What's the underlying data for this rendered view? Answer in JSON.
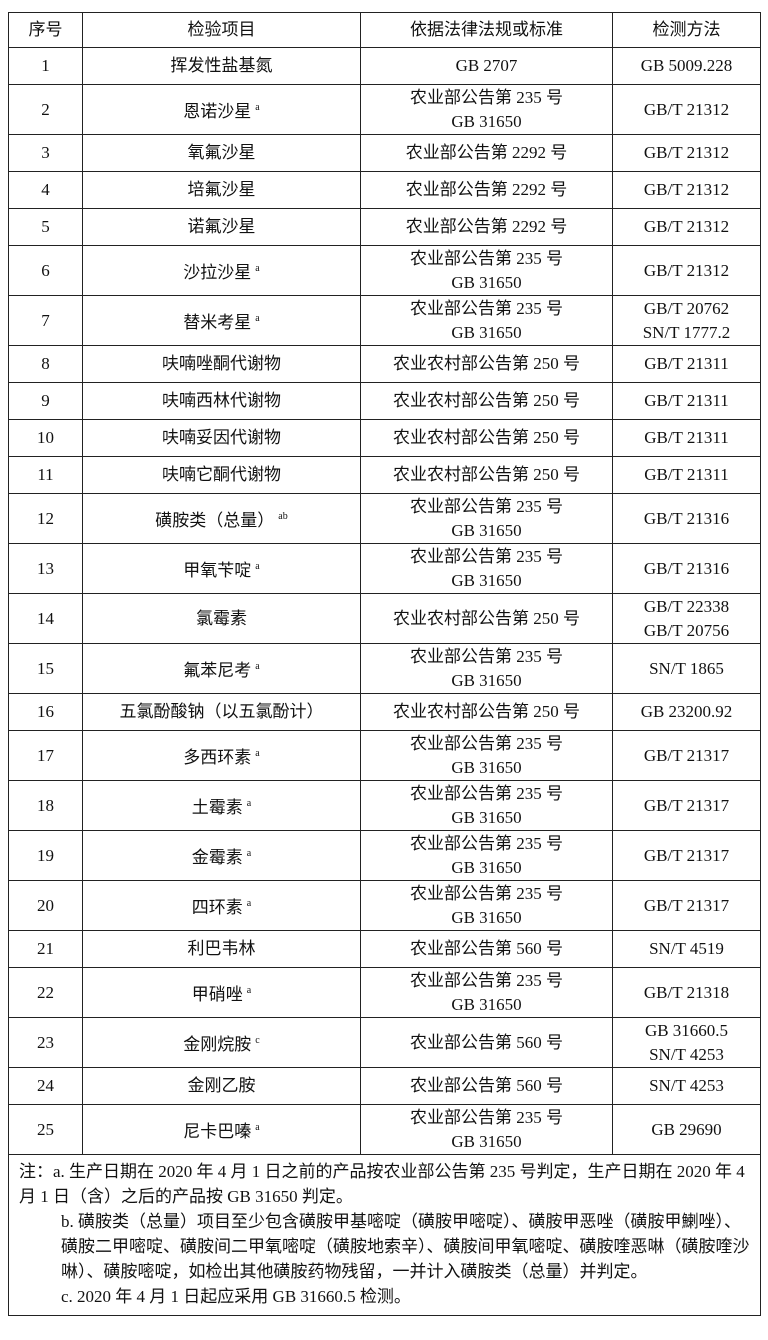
{
  "headers": [
    "序号",
    "检验项目",
    "依据法律法规或标准",
    "检测方法"
  ],
  "rows": [
    {
      "no": "1",
      "item": "挥发性盐基氮",
      "sup": "",
      "basis": [
        "GB 2707"
      ],
      "method": [
        "GB 5009.228"
      ]
    },
    {
      "no": "2",
      "item": "恩诺沙星",
      "sup": "a",
      "basis": [
        "农业部公告第 235 号",
        "GB 31650"
      ],
      "method": [
        "GB/T 21312"
      ]
    },
    {
      "no": "3",
      "item": "氧氟沙星",
      "sup": "",
      "basis": [
        "农业部公告第 2292 号"
      ],
      "method": [
        "GB/T 21312"
      ]
    },
    {
      "no": "4",
      "item": "培氟沙星",
      "sup": "",
      "basis": [
        "农业部公告第 2292 号"
      ],
      "method": [
        "GB/T 21312"
      ]
    },
    {
      "no": "5",
      "item": "诺氟沙星",
      "sup": "",
      "basis": [
        "农业部公告第 2292 号"
      ],
      "method": [
        "GB/T 21312"
      ]
    },
    {
      "no": "6",
      "item": "沙拉沙星",
      "sup": "a",
      "basis": [
        "农业部公告第 235 号",
        "GB 31650"
      ],
      "method": [
        "GB/T 21312"
      ]
    },
    {
      "no": "7",
      "item": "替米考星",
      "sup": "a",
      "basis": [
        "农业部公告第 235 号",
        "GB 31650"
      ],
      "method": [
        "GB/T 20762",
        "SN/T 1777.2"
      ]
    },
    {
      "no": "8",
      "item": "呋喃唑酮代谢物",
      "sup": "",
      "basis": [
        "农业农村部公告第 250 号"
      ],
      "method": [
        "GB/T 21311"
      ]
    },
    {
      "no": "9",
      "item": "呋喃西林代谢物",
      "sup": "",
      "basis": [
        "农业农村部公告第 250 号"
      ],
      "method": [
        "GB/T 21311"
      ]
    },
    {
      "no": "10",
      "item": "呋喃妥因代谢物",
      "sup": "",
      "basis": [
        "农业农村部公告第 250 号"
      ],
      "method": [
        "GB/T 21311"
      ]
    },
    {
      "no": "11",
      "item": "呋喃它酮代谢物",
      "sup": "",
      "basis": [
        "农业农村部公告第 250 号"
      ],
      "method": [
        "GB/T 21311"
      ]
    },
    {
      "no": "12",
      "item": "磺胺类（总量）",
      "sup": "ab",
      "basis": [
        "农业部公告第 235 号",
        "GB 31650"
      ],
      "method": [
        "GB/T 21316"
      ]
    },
    {
      "no": "13",
      "item": "甲氧苄啶",
      "sup": "a",
      "basis": [
        "农业部公告第 235 号",
        "GB 31650"
      ],
      "method": [
        "GB/T 21316"
      ]
    },
    {
      "no": "14",
      "item": "氯霉素",
      "sup": "",
      "basis": [
        "农业农村部公告第 250 号"
      ],
      "method": [
        "GB/T 22338",
        "GB/T 20756"
      ]
    },
    {
      "no": "15",
      "item": "氟苯尼考",
      "sup": "a",
      "basis": [
        "农业部公告第 235 号",
        "GB 31650"
      ],
      "method": [
        "SN/T 1865"
      ]
    },
    {
      "no": "16",
      "item": "五氯酚酸钠（以五氯酚计）",
      "sup": "",
      "basis": [
        "农业农村部公告第 250 号"
      ],
      "method": [
        "GB 23200.92"
      ]
    },
    {
      "no": "17",
      "item": "多西环素",
      "sup": "a",
      "basis": [
        "农业部公告第 235 号",
        "GB 31650"
      ],
      "method": [
        "GB/T 21317"
      ]
    },
    {
      "no": "18",
      "item": "土霉素",
      "sup": "a",
      "basis": [
        "农业部公告第 235 号",
        "GB 31650"
      ],
      "method": [
        "GB/T 21317"
      ]
    },
    {
      "no": "19",
      "item": "金霉素",
      "sup": "a",
      "basis": [
        "农业部公告第 235 号",
        "GB 31650"
      ],
      "method": [
        "GB/T 21317"
      ]
    },
    {
      "no": "20",
      "item": "四环素",
      "sup": "a",
      "basis": [
        "农业部公告第 235 号",
        "GB 31650"
      ],
      "method": [
        "GB/T 21317"
      ]
    },
    {
      "no": "21",
      "item": "利巴韦林",
      "sup": "",
      "basis": [
        "农业部公告第 560 号"
      ],
      "method": [
        "SN/T 4519"
      ]
    },
    {
      "no": "22",
      "item": "甲硝唑",
      "sup": "a",
      "basis": [
        "农业部公告第 235 号",
        "GB 31650"
      ],
      "method": [
        "GB/T 21318"
      ]
    },
    {
      "no": "23",
      "item": "金刚烷胺",
      "sup": "c",
      "basis": [
        "农业部公告第 560 号"
      ],
      "method": [
        "GB 31660.5",
        "SN/T 4253"
      ]
    },
    {
      "no": "24",
      "item": "金刚乙胺",
      "sup": "",
      "basis": [
        "农业部公告第 560 号"
      ],
      "method": [
        "SN/T 4253"
      ]
    },
    {
      "no": "25",
      "item": "尼卡巴嗪",
      "sup": "a",
      "basis": [
        "农业部公告第 235 号",
        "GB 31650"
      ],
      "method": [
        "GB 29690"
      ]
    }
  ],
  "notes": {
    "a": "注：a. 生产日期在 2020 年 4 月 1 日之前的产品按农业部公告第 235 号判定，生产日期在 2020 年 4 月 1 日（含）之后的产品按 GB 31650 判定。",
    "b": "b. 磺胺类（总量）项目至少包含磺胺甲基嘧啶（磺胺甲嘧啶）、磺胺甲恶唑（磺胺甲鯻唑）、磺胺二甲嘧啶、磺胺间二甲氧嘧啶（磺胺地索辛）、磺胺间甲氧嘧啶、磺胺喹恶啉（磺胺喹沙啉）、磺胺嘧啶，如检出其他磺胺药物残留，一并计入磺胺类（总量）并判定。",
    "c": "c. 2020 年 4 月 1 日起应采用 GB 31660.5 检测。"
  }
}
